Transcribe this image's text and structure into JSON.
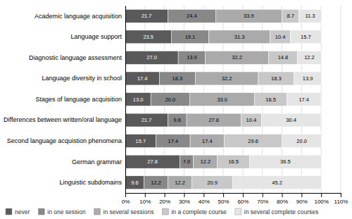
{
  "chart_data": {
    "type": "bar",
    "orientation": "horizontal",
    "stacked": true,
    "data_labels": true,
    "grid": true,
    "legend": "bottom-left",
    "categories": [
      "Academic language acquisition",
      "Language support",
      "Diagnostic language assessment",
      "Language diversity in school",
      "Stages of language acquisition",
      "Differences between written/oral language",
      "Second language acquistion phenomena",
      "German grammar",
      "Linguistic subdomains"
    ],
    "series": [
      {
        "name": "never",
        "color": "#5a5a5a",
        "values": [
          21.7,
          23.5,
          27.0,
          17.4,
          13.0,
          21.7,
          15.7,
          27.8,
          9.6
        ],
        "value_labels": [
          "21.7",
          "23.5",
          "27.0",
          "17.4",
          "13.0",
          "21.7",
          "15.7",
          "27.8",
          "9.6"
        ]
      },
      {
        "name": "in one session",
        "color": "#888888",
        "values": [
          24.4,
          19.1,
          13.9,
          18.3,
          20.0,
          9.6,
          17.4,
          7.0,
          12.2
        ],
        "value_labels": [
          "24.4",
          "19.1",
          "13.9",
          "18.3",
          "20.0",
          "9.6",
          "17.4",
          "7.0",
          "12.2"
        ]
      },
      {
        "name": "in several sessions",
        "color": "#aaaaaa",
        "values": [
          33.9,
          31.3,
          32.2,
          32.2,
          33.0,
          27.8,
          17.4,
          12.2,
          12.2
        ],
        "value_labels": [
          "33.9",
          "31.3",
          "32.2",
          "32.2",
          "33.0",
          "27.8",
          "17.4",
          "12.2",
          "12.2"
        ]
      },
      {
        "name": "in a complete course",
        "color": "#c8c8c8",
        "values": [
          8.7,
          10.4,
          14.8,
          18.3,
          16.5,
          10.4,
          29.6,
          16.5,
          20.9
        ],
        "value_labels": [
          "8.7",
          "10.4",
          "14.8",
          "18.3",
          "16.5",
          "10.4",
          "29.6",
          "16.5",
          "20.9"
        ]
      },
      {
        "name": "in several complete courses",
        "color": "#e5e5e5",
        "values": [
          11.3,
          15.7,
          12.2,
          13.9,
          17.4,
          30.4,
          20.0,
          36.5,
          45.2
        ],
        "value_labels": [
          "11.3",
          "15.7",
          "12.2",
          "13.9",
          "17.4",
          "30.4",
          "20.0",
          "36.5",
          "45.2"
        ]
      }
    ],
    "xlim": [
      0,
      110
    ],
    "xticks": [
      {
        "value": 0,
        "label": "0%"
      },
      {
        "value": 10,
        "label": "10%"
      },
      {
        "value": 20,
        "label": "20%"
      },
      {
        "value": 30,
        "label": "30%"
      },
      {
        "value": 40,
        "label": "40%"
      },
      {
        "value": 50,
        "label": "50%"
      },
      {
        "value": 60,
        "label": "60%"
      },
      {
        "value": 70,
        "label": "70%"
      },
      {
        "value": 80,
        "label": "80%"
      },
      {
        "value": 90,
        "label": "90%"
      },
      {
        "value": 100,
        "label": "100%"
      },
      {
        "value": 110,
        "label": "110%"
      }
    ]
  }
}
